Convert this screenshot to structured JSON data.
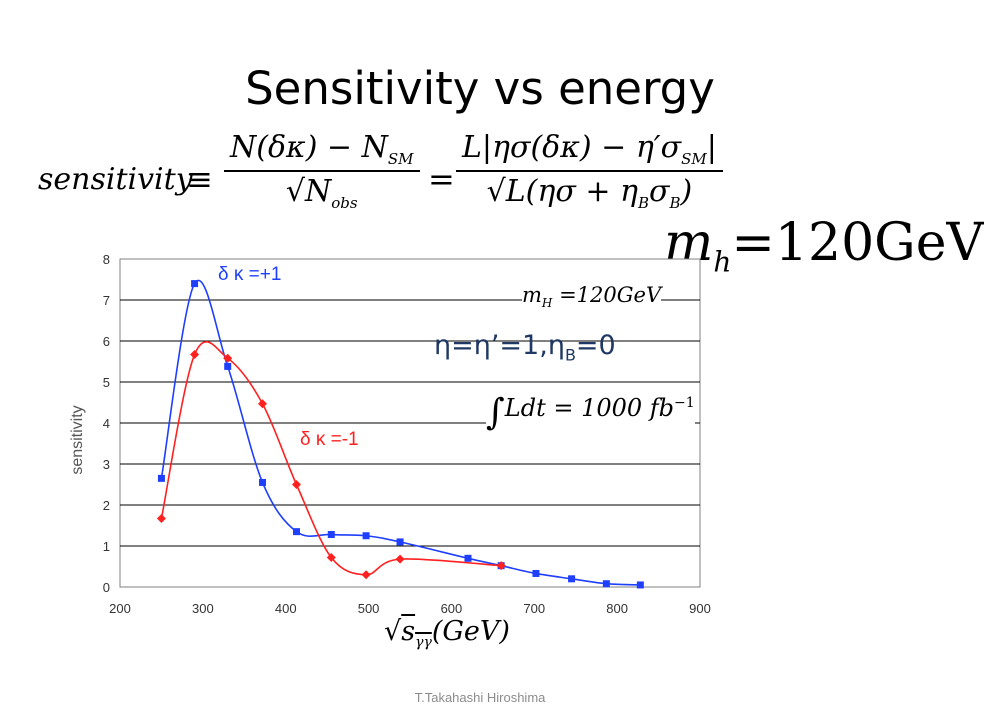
{
  "slide": {
    "title": "Sensitivity vs energy",
    "footer": "T.Takahashi   Hiroshima"
  },
  "formula": {
    "lhs": "sensitivity",
    "equiv": "≡",
    "frac1_num": "N(δκ) − N",
    "frac1_num_sub": "SM",
    "frac1_den": "N",
    "frac1_den_sub": "obs",
    "eq": "=",
    "frac2_num": "L|ησ(δκ) − η′σ",
    "frac2_num_sub": "SM",
    "frac2_num_end": "|",
    "frac2_den": "L(ησ + η",
    "frac2_den_sub1": "B",
    "frac2_den_mid": "σ",
    "frac2_den_sub2": "B",
    "frac2_den_end": ")"
  },
  "annotations": {
    "mh_big": "m",
    "mh_big_sub": "h",
    "mh_big_rest": "=120GeV",
    "mH_small": "m",
    "mH_small_sub": "H",
    "mH_small_rest": " =120GeV",
    "eta_main": "η=η’=1,η",
    "eta_sub": "B",
    "eta_end": "=0",
    "lum_int": "∫",
    "lum_body": "Ldt = 1000 fb",
    "lum_exp": "−1",
    "xlabel_root": "√",
    "xlabel_s": "s",
    "xlabel_sub": "γγ",
    "xlabel_rest": "(GeV)"
  },
  "chart_data": {
    "type": "line",
    "ylabel": "sensitivity",
    "xlim": [
      200,
      900
    ],
    "ylim": [
      0,
      8
    ],
    "x_ticks": [
      200,
      300,
      400,
      500,
      600,
      700,
      800,
      900
    ],
    "y_ticks": [
      0,
      1,
      2,
      3,
      4,
      5,
      6,
      7,
      8
    ],
    "grid": "horizontal",
    "series": [
      {
        "name": "δ κ =+1",
        "color": "#1f3fff",
        "marker": "square",
        "x": [
          250,
          290,
          330,
          372,
          413,
          455,
          497,
          538,
          620,
          660,
          702,
          745,
          787,
          828
        ],
        "y": [
          2.65,
          7.4,
          5.38,
          2.55,
          1.35,
          1.28,
          1.25,
          1.1,
          0.7,
          0.52,
          0.33,
          0.2,
          0.08,
          0.05
        ]
      },
      {
        "name": "δ κ =-1",
        "color": "#ff2020",
        "marker": "diamond",
        "x": [
          250,
          290,
          330,
          372,
          413,
          455,
          497,
          538,
          660
        ],
        "y": [
          1.67,
          5.67,
          5.58,
          4.47,
          2.5,
          0.72,
          0.3,
          0.68,
          0.52
        ]
      }
    ]
  }
}
